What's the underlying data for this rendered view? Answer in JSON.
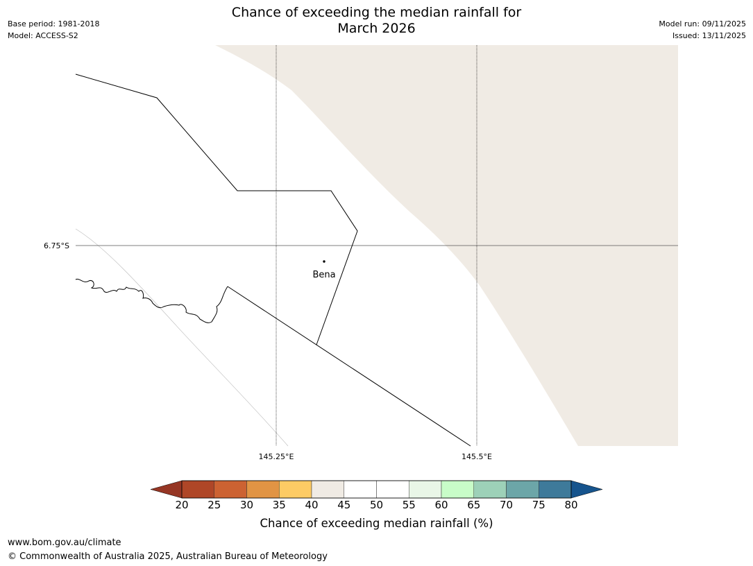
{
  "header": {
    "base_period": "Base period: 1981-2018",
    "model": "Model: ACCESS-S2",
    "title_line1": "Chance of exceeding the median rainfall for",
    "title_line2": "March 2026",
    "model_run": "Model run: 09/11/2025",
    "issued": "Issued: 13/11/2025"
  },
  "map": {
    "lat_label": "6.75°S",
    "lon_labels": [
      "145.25°E",
      "145.5°E"
    ],
    "place": "Bena",
    "colors": {
      "shade": "#f0ebe4",
      "boundary": "#000000",
      "gridline": "#000000"
    }
  },
  "colorbar": {
    "ticks": [
      "20",
      "25",
      "30",
      "35",
      "40",
      "45",
      "50",
      "55",
      "60",
      "65",
      "70",
      "75",
      "80"
    ],
    "colors": [
      "#af4627",
      "#cc6232",
      "#e19444",
      "#fdcb64",
      "#f0ebe4",
      "#ffffff",
      "#ffffff",
      "#e9f6e7",
      "#c8fcc8",
      "#9dd1b8",
      "#6ca6a8",
      "#3e7a9a"
    ],
    "under_color": "#963624",
    "over_color": "#16548d",
    "label": "Chance of exceeding median rainfall (%)"
  },
  "footer": {
    "url": "www.bom.gov.au/climate",
    "copyright": "© Commonwealth of Australia 2025, Australian Bureau of Meteorology"
  }
}
